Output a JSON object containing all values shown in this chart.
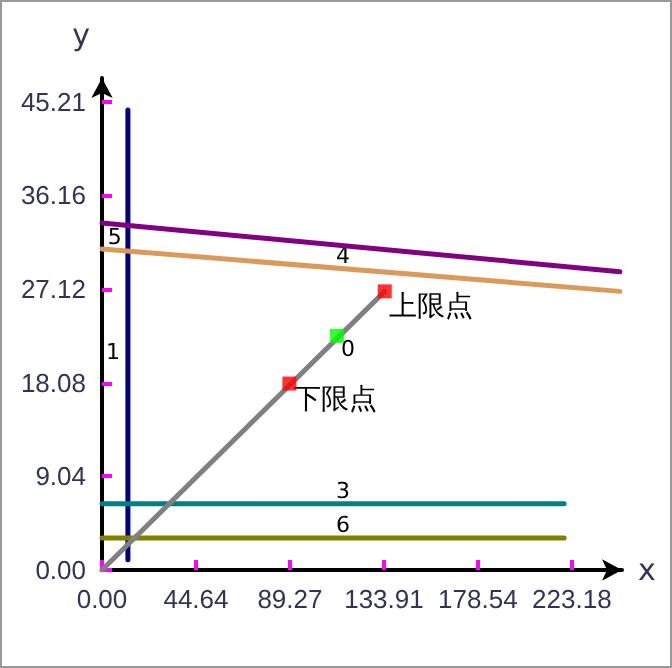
{
  "chart_data": {
    "type": "line",
    "xlabel": "x",
    "ylabel": "y",
    "xlim": [
      0,
      247
    ],
    "ylim": [
      0,
      47.5
    ],
    "xticks": [
      {
        "value": 0,
        "label": "0.00"
      },
      44.64,
      89.27,
      133.91,
      178.54,
      223.18
    ],
    "yticks": [
      {
        "value": 0,
        "label": "0.00"
      },
      9.04,
      18.08,
      27.12,
      36.16,
      45.21
    ],
    "grid": false,
    "marker": "none",
    "line_style": "solid",
    "series": [
      {
        "color": "#000080",
        "x": [
          12.3,
          12.3
        ],
        "values": [
          1,
          44.4
        ]
      },
      {
        "color": "#800080",
        "x": [
          0,
          246
        ],
        "values": [
          33.5,
          28.8
        ]
      },
      {
        "color": "#d99a5b",
        "x": [
          0,
          246
        ],
        "values": [
          31.0,
          26.9
        ]
      },
      {
        "color": "#008080",
        "x": [
          0,
          219.5
        ],
        "values": [
          6.4,
          6.4
        ]
      },
      {
        "color": "#808000",
        "x": [
          0,
          219.5
        ],
        "values": [
          3.1,
          3.1
        ]
      },
      {
        "color": "#808080",
        "x": [
          0,
          134.3
        ],
        "values": [
          0,
          26.9
        ]
      },
      {
        "type": "scatter",
        "marker": "square",
        "color": "#ff0000",
        "x": [
          89,
          134.3
        ],
        "values": [
          18,
          26.9
        ]
      },
      {
        "type": "scatter",
        "marker": "square",
        "color": "#00ff00",
        "x": [
          111.6
        ],
        "values": [
          22.6
        ]
      }
    ],
    "annotations": [
      {
        "text": "上限点",
        "x": 134.3,
        "y": 26.9
      },
      {
        "text": "下限点",
        "x": 89,
        "y": 18
      },
      {
        "text": "0",
        "x": 111.6,
        "y": 22.6
      },
      {
        "text": "1",
        "x": 12.3,
        "y": 21
      },
      {
        "text": "3",
        "x": 114.5,
        "y": 6.4
      },
      {
        "text": "4",
        "x": 114.5,
        "y": 29.1
      },
      {
        "text": "5",
        "x": 6,
        "y": 30.9
      },
      {
        "text": "6",
        "x": 114.5,
        "y": 3.1
      }
    ]
  }
}
